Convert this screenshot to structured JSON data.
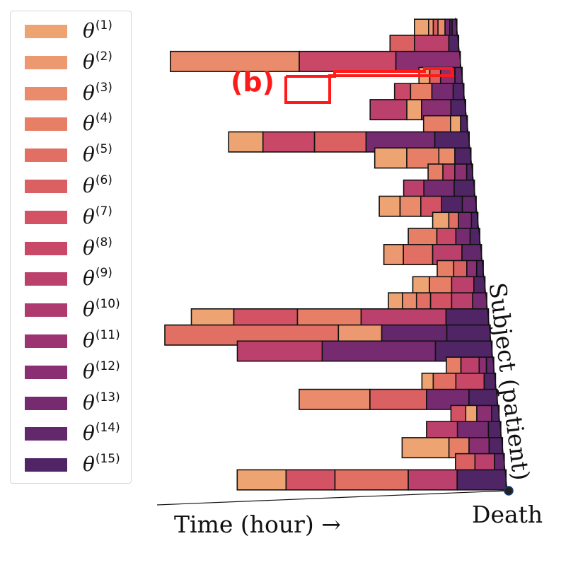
{
  "chart_data": {
    "type": "stacked-horizontal-bar",
    "title": "",
    "xlabel": "Time (hour) →",
    "ylabel": "Subject (patient)",
    "end_marker_label": "Death",
    "annotation": "(b)",
    "legend_position": "left",
    "legend": [
      {
        "name": "θ",
        "sup": "(1)",
        "color": "#eea472"
      },
      {
        "name": "θ",
        "sup": "(2)",
        "color": "#ec9870"
      },
      {
        "name": "θ",
        "sup": "(3)",
        "color": "#ea8c6b"
      },
      {
        "name": "θ",
        "sup": "(4)",
        "color": "#e77f66"
      },
      {
        "name": "θ",
        "sup": "(5)",
        "color": "#e26f63"
      },
      {
        "name": "θ",
        "sup": "(6)",
        "color": "#db6062"
      },
      {
        "name": "θ",
        "sup": "(7)",
        "color": "#d35365"
      },
      {
        "name": "θ",
        "sup": "(8)",
        "color": "#c94868"
      },
      {
        "name": "θ",
        "sup": "(9)",
        "color": "#bc406c"
      },
      {
        "name": "θ",
        "sup": "(10)",
        "color": "#ae3a6f"
      },
      {
        "name": "θ",
        "sup": "(11)",
        "color": "#9c3472"
      },
      {
        "name": "θ",
        "sup": "(12)",
        "color": "#8a2f72"
      },
      {
        "name": "θ",
        "sup": "(13)",
        "color": "#762b70"
      },
      {
        "name": "θ",
        "sup": "(14)",
        "color": "#63276b"
      },
      {
        "name": "θ",
        "sup": "(15)",
        "color": "#502565"
      }
    ],
    "subjects": [
      {
        "id": 1,
        "segments": [
          [
            0,
            1
          ],
          [
            6,
            2
          ],
          [
            8,
            6
          ],
          [
            10,
            3
          ],
          [
            13,
            13
          ],
          [
            15,
            15
          ],
          [
            16,
            14
          ]
        ]
      },
      {
        "id": 2,
        "segments": [
          [
            0,
            6
          ],
          [
            5,
            9
          ],
          [
            12,
            15
          ]
        ]
      },
      {
        "id": 3,
        "segments": [
          [
            0,
            3
          ],
          [
            4,
            8
          ],
          [
            7,
            12
          ]
        ]
      },
      {
        "id": 4,
        "segments": [
          [
            0,
            1
          ],
          [
            3,
            6
          ],
          [
            6,
            12
          ],
          [
            10,
            14
          ]
        ]
      },
      {
        "id": 5,
        "segments": [
          [
            0,
            8
          ],
          [
            3,
            4
          ],
          [
            7,
            13
          ],
          [
            11,
            15
          ]
        ]
      },
      {
        "id": 6,
        "segments": [
          [
            0,
            9
          ],
          [
            5,
            1
          ],
          [
            7,
            12
          ],
          [
            11,
            15
          ]
        ]
      },
      {
        "id": 7,
        "segments": [
          [
            0,
            4
          ],
          [
            8,
            1
          ],
          [
            11,
            15
          ]
        ]
      },
      {
        "id": 8,
        "segments": [
          [
            0,
            1
          ],
          [
            2,
            8
          ],
          [
            5,
            6
          ],
          [
            8,
            13
          ],
          [
            12,
            15
          ]
        ]
      },
      {
        "id": 9,
        "segments": [
          [
            0,
            1
          ],
          [
            4,
            4
          ],
          [
            8,
            3
          ],
          [
            10,
            15
          ]
        ]
      },
      {
        "id": 10,
        "segments": [
          [
            0,
            4
          ],
          [
            5,
            9
          ],
          [
            9,
            12
          ],
          [
            13,
            15
          ]
        ]
      },
      {
        "id": 11,
        "segments": [
          [
            0,
            9
          ],
          [
            2,
            13
          ],
          [
            5,
            15
          ]
        ]
      },
      {
        "id": 12,
        "segments": [
          [
            0,
            1
          ],
          [
            3,
            3
          ],
          [
            6,
            7
          ],
          [
            9,
            15
          ],
          [
            12,
            14
          ]
        ]
      },
      {
        "id": 13,
        "segments": [
          [
            0,
            1
          ],
          [
            5,
            5
          ],
          [
            8,
            13
          ],
          [
            12,
            15
          ]
        ]
      },
      {
        "id": 14,
        "segments": [
          [
            0,
            4
          ],
          [
            6,
            8
          ],
          [
            10,
            13
          ],
          [
            13,
            15
          ]
        ]
      },
      {
        "id": 15,
        "segments": [
          [
            0,
            2
          ],
          [
            2,
            5
          ],
          [
            5,
            9
          ],
          [
            8,
            14
          ]
        ]
      },
      {
        "id": 16,
        "segments": [
          [
            0,
            4
          ],
          [
            5,
            6
          ],
          [
            9,
            12
          ],
          [
            12,
            15
          ]
        ]
      },
      {
        "id": 17,
        "segments": [
          [
            0,
            1
          ],
          [
            3,
            4
          ],
          [
            7,
            9
          ],
          [
            11,
            15
          ]
        ]
      },
      {
        "id": 18,
        "segments": [
          [
            0,
            1
          ],
          [
            2,
            3
          ],
          [
            4,
            5
          ],
          [
            6,
            7
          ],
          [
            9,
            9
          ],
          [
            12,
            13
          ]
        ]
      },
      {
        "id": 19,
        "segments": [
          [
            0,
            1
          ],
          [
            2,
            7
          ],
          [
            5,
            4
          ],
          [
            8,
            9
          ],
          [
            12,
            15
          ]
        ]
      },
      {
        "id": 20,
        "segments": [
          [
            0,
            5
          ],
          [
            8,
            2
          ],
          [
            10,
            14
          ],
          [
            13,
            15
          ]
        ]
      },
      {
        "id": 21,
        "segments": [
          [
            0,
            9
          ],
          [
            3,
            13
          ],
          [
            7,
            15
          ]
        ]
      },
      {
        "id": 22,
        "segments": [
          [
            0,
            4
          ],
          [
            4,
            9
          ],
          [
            9,
            12
          ],
          [
            11,
            14
          ]
        ]
      },
      {
        "id": 23,
        "segments": [
          [
            0,
            1
          ],
          [
            2,
            5
          ],
          [
            6,
            8
          ],
          [
            11,
            15
          ]
        ]
      },
      {
        "id": 24,
        "segments": [
          [
            0,
            3
          ],
          [
            5,
            6
          ],
          [
            9,
            13
          ],
          [
            12,
            15
          ]
        ]
      },
      {
        "id": 25,
        "segments": [
          [
            0,
            7
          ],
          [
            4,
            1
          ],
          [
            7,
            12
          ],
          [
            11,
            15
          ]
        ]
      },
      {
        "id": 26,
        "segments": [
          [
            0,
            9
          ],
          [
            5,
            13
          ],
          [
            10,
            15
          ]
        ]
      },
      {
        "id": 27,
        "segments": [
          [
            0,
            1
          ],
          [
            7,
            4
          ],
          [
            10,
            12
          ],
          [
            13,
            15
          ]
        ]
      },
      {
        "id": 28,
        "segments": [
          [
            0,
            6
          ],
          [
            4,
            9
          ],
          [
            8,
            14
          ]
        ]
      },
      {
        "id": 29,
        "segments": [
          [
            0,
            1
          ],
          [
            2,
            7
          ],
          [
            4,
            5
          ],
          [
            7,
            9
          ],
          [
            9,
            15
          ]
        ]
      }
    ]
  }
}
